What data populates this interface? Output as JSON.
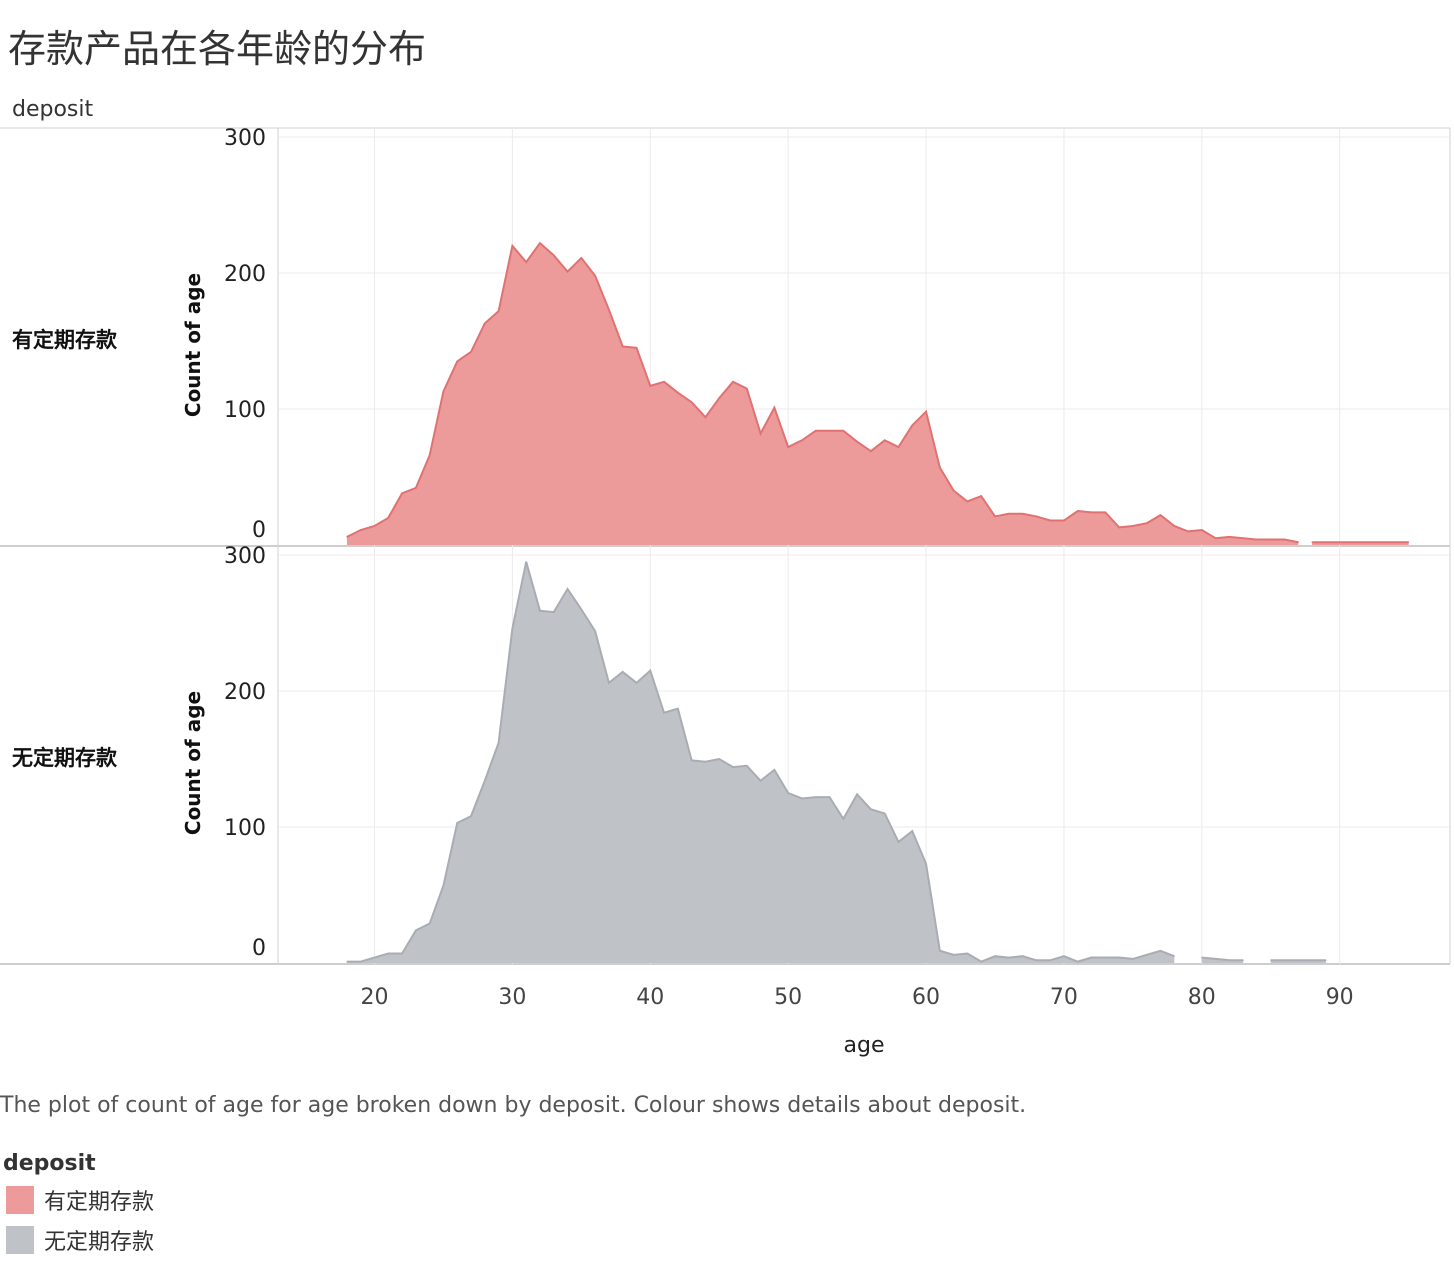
{
  "title": "存款产品在各年龄的分布",
  "row_header": "deposit",
  "caption": "The plot of count of age for age broken down by deposit.  Colour shows details about deposit.",
  "legend": {
    "title": "deposit",
    "items": [
      {
        "label": "有定期存款",
        "color": "#ec9a9a"
      },
      {
        "label": "无定期存款",
        "color": "#bfc2c7"
      }
    ]
  },
  "chart_data": {
    "type": "area",
    "xlabel": "age",
    "ylabel": "Count of age",
    "xlim": [
      13,
      98
    ],
    "ylim": [
      0,
      300
    ],
    "x_ticks": [
      20,
      30,
      40,
      50,
      60,
      70,
      80,
      90
    ],
    "y_ticks": [
      0,
      100,
      200,
      300
    ],
    "grid": true,
    "series": [
      {
        "name": "有定期存款",
        "color": "#ec9a9a",
        "line_color": "#e07272",
        "segments": [
          [
            [
              18,
              6
            ],
            [
              19,
              11
            ],
            [
              20,
              14
            ],
            [
              21,
              20
            ],
            [
              22,
              38
            ],
            [
              23,
              42
            ],
            [
              24,
              66
            ],
            [
              25,
              113
            ],
            [
              26,
              135
            ],
            [
              27,
              142
            ],
            [
              28,
              163
            ],
            [
              29,
              172
            ],
            [
              30,
              220
            ],
            [
              31,
              208
            ],
            [
              32,
              222
            ],
            [
              33,
              213
            ],
            [
              34,
              201
            ],
            [
              35,
              211
            ],
            [
              36,
              198
            ],
            [
              37,
              173
            ],
            [
              38,
              146
            ],
            [
              39,
              145
            ],
            [
              40,
              117
            ],
            [
              41,
              120
            ],
            [
              42,
              112
            ],
            [
              43,
              105
            ],
            [
              44,
              94
            ],
            [
              45,
              108
            ],
            [
              46,
              120
            ],
            [
              47,
              115
            ],
            [
              48,
              82
            ],
            [
              49,
              101
            ],
            [
              50,
              72
            ],
            [
              51,
              77
            ],
            [
              52,
              84
            ],
            [
              53,
              84
            ],
            [
              54,
              84
            ],
            [
              55,
              76
            ],
            [
              56,
              69
            ],
            [
              57,
              77
            ],
            [
              58,
              72
            ],
            [
              59,
              88
            ],
            [
              60,
              98
            ],
            [
              61,
              57
            ],
            [
              62,
              40
            ],
            [
              63,
              32
            ],
            [
              64,
              36
            ],
            [
              65,
              21
            ],
            [
              66,
              23
            ],
            [
              67,
              23
            ],
            [
              68,
              21
            ],
            [
              69,
              18
            ],
            [
              70,
              18
            ],
            [
              71,
              25
            ],
            [
              72,
              24
            ],
            [
              73,
              24
            ],
            [
              74,
              13
            ],
            [
              75,
              14
            ],
            [
              76,
              16
            ],
            [
              77,
              22
            ],
            [
              78,
              14
            ],
            [
              79,
              10
            ],
            [
              80,
              11
            ],
            [
              81,
              5
            ],
            [
              82,
              6
            ],
            [
              83,
              5
            ],
            [
              84,
              4
            ],
            [
              85,
              4
            ],
            [
              86,
              4
            ],
            [
              87,
              2
            ]
          ],
          [
            [
              88,
              2
            ],
            [
              89,
              2
            ],
            [
              90,
              2
            ],
            [
              91,
              2
            ],
            [
              92,
              2
            ],
            [
              93,
              2
            ],
            [
              94,
              2
            ],
            [
              95,
              2
            ]
          ]
        ]
      },
      {
        "name": "无定期存款",
        "color": "#bfc2c7",
        "line_color": "#a9adb3",
        "segments": [
          [
            [
              18,
              1
            ],
            [
              19,
              1
            ],
            [
              20,
              4
            ],
            [
              21,
              7
            ],
            [
              22,
              7
            ],
            [
              23,
              24
            ],
            [
              24,
              29
            ],
            [
              25,
              57
            ],
            [
              26,
              103
            ],
            [
              27,
              108
            ],
            [
              28,
              134
            ],
            [
              29,
              162
            ],
            [
              30,
              246
            ],
            [
              31,
              295
            ],
            [
              32,
              259
            ],
            [
              33,
              258
            ],
            [
              34,
              275
            ],
            [
              35,
              260
            ],
            [
              36,
              244
            ],
            [
              37,
              206
            ],
            [
              38,
              214
            ],
            [
              39,
              206
            ],
            [
              40,
              215
            ],
            [
              41,
              184
            ],
            [
              42,
              187
            ],
            [
              43,
              149
            ],
            [
              44,
              148
            ],
            [
              45,
              150
            ],
            [
              46,
              144
            ],
            [
              47,
              145
            ],
            [
              48,
              134
            ],
            [
              49,
              142
            ],
            [
              50,
              125
            ],
            [
              51,
              121
            ],
            [
              52,
              122
            ],
            [
              53,
              122
            ],
            [
              54,
              106
            ],
            [
              55,
              124
            ],
            [
              56,
              113
            ],
            [
              57,
              110
            ],
            [
              58,
              89
            ],
            [
              59,
              97
            ],
            [
              60,
              73
            ],
            [
              61,
              9
            ],
            [
              62,
              6
            ],
            [
              63,
              7
            ],
            [
              64,
              1
            ],
            [
              65,
              5
            ],
            [
              66,
              4
            ],
            [
              67,
              5
            ],
            [
              68,
              2
            ],
            [
              69,
              2
            ],
            [
              70,
              5
            ],
            [
              71,
              1
            ],
            [
              72,
              4
            ],
            [
              73,
              4
            ],
            [
              74,
              4
            ],
            [
              75,
              3
            ],
            [
              76,
              6
            ],
            [
              77,
              9
            ],
            [
              78,
              5
            ]
          ],
          [
            [
              80,
              4
            ],
            [
              81,
              3
            ],
            [
              82,
              2
            ],
            [
              83,
              2
            ]
          ],
          [
            [
              85,
              2
            ],
            [
              86,
              2
            ],
            [
              87,
              2
            ],
            [
              88,
              2
            ],
            [
              89,
              2
            ]
          ]
        ]
      }
    ]
  }
}
